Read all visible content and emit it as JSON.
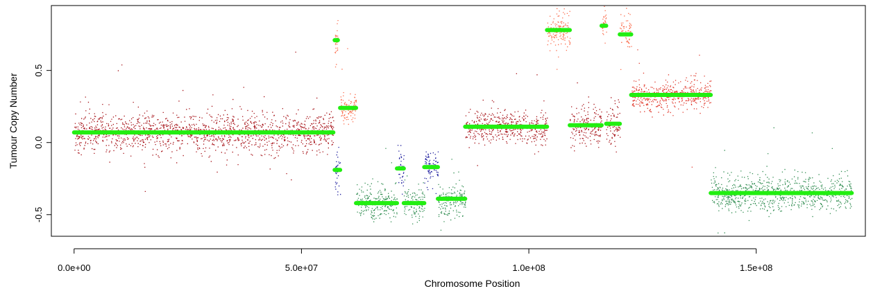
{
  "chart_data": {
    "type": "scatter",
    "xlabel": "Chromosome Position",
    "ylabel": "Tumour Copy Number",
    "xlim": [
      -5000000,
      174000000
    ],
    "ylim": [
      -0.65,
      0.95
    ],
    "x_ticks": [
      0,
      50000000,
      100000000,
      150000000
    ],
    "x_tick_labels": [
      "0.0e+00",
      "5.0e+07",
      "1.0e+08",
      "1.5e+08"
    ],
    "y_ticks": [
      -0.5,
      0.0,
      0.5
    ],
    "y_tick_labels": [
      "-0.5",
      "0.0",
      "0.5"
    ],
    "grid": false,
    "point_colors": {
      "darkred": "#a50f15",
      "salmon": "#fb6a4a",
      "red": "#e0382b",
      "darkgreen": "#2e8b4f",
      "navy": "#1a1a9c"
    },
    "segment_color": "#22ee11",
    "segments": [
      {
        "x_start": 0,
        "x_end": 57000000,
        "y": 0.07,
        "points_color": "darkred",
        "spread": 0.12
      },
      {
        "x_start": 57300000,
        "x_end": 58000000,
        "y": 0.71,
        "points_color": "salmon",
        "spread": 0.15
      },
      {
        "x_start": 57300000,
        "x_end": 58500000,
        "y": -0.19,
        "points_color": "navy",
        "spread": 0.18
      },
      {
        "x_start": 58500000,
        "x_end": 62000000,
        "y": 0.24,
        "points_color": "salmon",
        "spread": 0.1
      },
      {
        "x_start": 62000000,
        "x_end": 71000000,
        "y": -0.42,
        "points_color": "darkgreen",
        "spread": 0.1
      },
      {
        "x_start": 71000000,
        "x_end": 72500000,
        "y": -0.18,
        "points_color": "navy",
        "spread": 0.12
      },
      {
        "x_start": 72500000,
        "x_end": 77000000,
        "y": -0.42,
        "points_color": "darkgreen",
        "spread": 0.1
      },
      {
        "x_start": 77000000,
        "x_end": 80000000,
        "y": -0.17,
        "points_color": "navy",
        "spread": 0.1
      },
      {
        "x_start": 80000000,
        "x_end": 86000000,
        "y": -0.39,
        "points_color": "darkgreen",
        "spread": 0.1
      },
      {
        "x_start": 86000000,
        "x_end": 104000000,
        "y": 0.11,
        "points_color": "darkred",
        "spread": 0.1
      },
      {
        "x_start": 104000000,
        "x_end": 109000000,
        "y": 0.78,
        "points_color": "salmon",
        "spread": 0.12
      },
      {
        "x_start": 109000000,
        "x_end": 116000000,
        "y": 0.12,
        "points_color": "darkred",
        "spread": 0.12
      },
      {
        "x_start": 116000000,
        "x_end": 117000000,
        "y": 0.81,
        "points_color": "salmon",
        "spread": 0.12
      },
      {
        "x_start": 117000000,
        "x_end": 120000000,
        "y": 0.13,
        "points_color": "darkred",
        "spread": 0.12
      },
      {
        "x_start": 120000000,
        "x_end": 122500000,
        "y": 0.75,
        "points_color": "salmon",
        "spread": 0.12
      },
      {
        "x_start": 122500000,
        "x_end": 140000000,
        "y": 0.33,
        "points_color": "red",
        "spread": 0.1
      },
      {
        "x_start": 140000000,
        "x_end": 171000000,
        "y": -0.35,
        "points_color": "darkgreen",
        "spread": 0.11
      }
    ]
  }
}
